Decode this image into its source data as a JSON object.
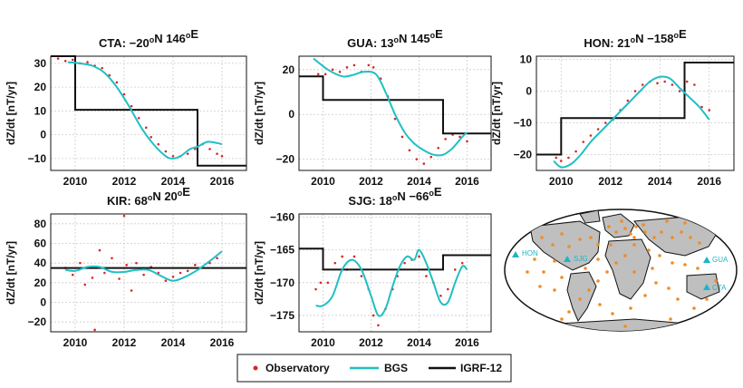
{
  "colors": {
    "observatory": "#d62728",
    "bgs": "#1fbfc4",
    "igrf": "#111111",
    "grid": "#cccccc",
    "land": "#bfbfbf",
    "station": "#f28b25"
  },
  "chart_data": [
    {
      "type": "line",
      "title_main": "CTA: −20",
      "title_sup1": "o",
      "title_mid": "N 146",
      "title_sup2": "o",
      "title_end": "E",
      "ylabel": "dZ/dt [nT/yr]",
      "xlim": [
        2009,
        2017
      ],
      "ylim": [
        -15,
        33
      ],
      "xticks": [
        2010,
        2012,
        2014,
        2016
      ],
      "yticks": [
        -10,
        0,
        10,
        20,
        30
      ],
      "bgs": [
        [
          2009.7,
          30.5
        ],
        [
          2010.2,
          30
        ],
        [
          2010.7,
          29
        ],
        [
          2011.2,
          26
        ],
        [
          2011.7,
          20
        ],
        [
          2012.2,
          12
        ],
        [
          2012.7,
          3
        ],
        [
          2013.2,
          -4
        ],
        [
          2013.7,
          -9
        ],
        [
          2014.0,
          -10
        ],
        [
          2014.3,
          -9
        ],
        [
          2014.7,
          -6
        ],
        [
          2015.0,
          -5
        ],
        [
          2015.4,
          -3
        ],
        [
          2015.8,
          -3.5
        ],
        [
          2016.0,
          -4
        ]
      ],
      "igrf": [
        [
          2009,
          33
        ],
        [
          2010,
          33
        ],
        [
          2010,
          10.5
        ],
        [
          2015,
          10.5
        ],
        [
          2015,
          -13
        ],
        [
          2017,
          -13
        ]
      ],
      "obs": [
        [
          2009.3,
          32
        ],
        [
          2009.6,
          31
        ],
        [
          2009.9,
          31.5
        ],
        [
          2010.2,
          30
        ],
        [
          2010.5,
          30.5
        ],
        [
          2010.8,
          29
        ],
        [
          2011.1,
          28
        ],
        [
          2011.4,
          25
        ],
        [
          2011.7,
          22
        ],
        [
          2012.0,
          17
        ],
        [
          2012.3,
          12
        ],
        [
          2012.6,
          7
        ],
        [
          2012.9,
          3
        ],
        [
          2013.1,
          -1
        ],
        [
          2013.4,
          -4
        ],
        [
          2013.7,
          -7
        ],
        [
          2014.0,
          -9
        ],
        [
          2014.3,
          -9
        ],
        [
          2014.6,
          -8
        ],
        [
          2014.9,
          -6
        ],
        [
          2015.2,
          -4
        ],
        [
          2015.5,
          -6
        ],
        [
          2015.8,
          -8
        ],
        [
          2016.0,
          -9
        ]
      ],
      "bands": null
    },
    {
      "type": "line",
      "title_main": "GUA: 13",
      "title_sup1": "o",
      "title_mid": "N 145",
      "title_sup2": "o",
      "title_end": "E",
      "ylabel": "dZ/dt [nT/yr]",
      "xlim": [
        2009,
        2017
      ],
      "ylim": [
        -25,
        26
      ],
      "xticks": [
        2010,
        2012,
        2014,
        2016
      ],
      "yticks": [
        -20,
        0,
        20
      ],
      "bgs": [
        [
          2009.6,
          25
        ],
        [
          2010.2,
          20
        ],
        [
          2010.8,
          17
        ],
        [
          2011.2,
          17.5
        ],
        [
          2011.7,
          19
        ],
        [
          2012.2,
          18
        ],
        [
          2012.6,
          10
        ],
        [
          2013.0,
          0
        ],
        [
          2013.4,
          -8
        ],
        [
          2013.8,
          -13
        ],
        [
          2014.2,
          -16
        ],
        [
          2014.6,
          -18
        ],
        [
          2015.0,
          -18
        ],
        [
          2015.4,
          -15
        ],
        [
          2015.8,
          -10
        ],
        [
          2016.0,
          -8
        ]
      ],
      "igrf": [
        [
          2009,
          17
        ],
        [
          2010,
          17
        ],
        [
          2010,
          6.5
        ],
        [
          2015,
          6.5
        ],
        [
          2015,
          -8.5
        ],
        [
          2017,
          -8.5
        ]
      ],
      "obs": [
        [
          2009.8,
          18
        ],
        [
          2010.1,
          18
        ],
        [
          2010.4,
          20
        ],
        [
          2010.7,
          19
        ],
        [
          2011.0,
          21
        ],
        [
          2011.3,
          22
        ],
        [
          2011.6,
          19
        ],
        [
          2011.9,
          22
        ],
        [
          2012.1,
          21
        ],
        [
          2012.4,
          16
        ],
        [
          2012.7,
          8
        ],
        [
          2013.0,
          -2
        ],
        [
          2013.3,
          -10
        ],
        [
          2013.6,
          -16
        ],
        [
          2013.9,
          -20
        ],
        [
          2014.2,
          -22
        ],
        [
          2014.5,
          -19
        ],
        [
          2014.8,
          -15
        ],
        [
          2015.1,
          -11
        ],
        [
          2015.4,
          -9
        ],
        [
          2015.7,
          -10
        ],
        [
          2016.0,
          -12
        ]
      ],
      "bands": null
    },
    {
      "type": "line",
      "title_main": "HON: 21",
      "title_sup1": "o",
      "title_mid": "N −158",
      "title_sup2": "o",
      "title_end": "E",
      "ylabel": "dZ/dt [nT/yr]",
      "xlim": [
        2009,
        2017
      ],
      "ylim": [
        -25,
        11
      ],
      "xticks": [
        2010,
        2012,
        2014,
        2016
      ],
      "yticks": [
        -20,
        -10,
        0,
        10
      ],
      "bgs": [
        [
          2009.7,
          -22
        ],
        [
          2010.0,
          -24
        ],
        [
          2010.4,
          -23
        ],
        [
          2010.8,
          -20
        ],
        [
          2011.2,
          -16
        ],
        [
          2011.7,
          -12
        ],
        [
          2012.2,
          -8
        ],
        [
          2012.7,
          -4
        ],
        [
          2013.2,
          0
        ],
        [
          2013.6,
          3
        ],
        [
          2014.0,
          4.5
        ],
        [
          2014.4,
          4
        ],
        [
          2014.8,
          1
        ],
        [
          2015.2,
          -2
        ],
        [
          2015.6,
          -5
        ],
        [
          2016.0,
          -9
        ]
      ],
      "igrf": [
        [
          2009,
          -20
        ],
        [
          2010,
          -20
        ],
        [
          2010,
          -8.5
        ],
        [
          2015,
          -8.5
        ],
        [
          2015,
          9
        ],
        [
          2017,
          9
        ]
      ],
      "obs": [
        [
          2009.8,
          -21
        ],
        [
          2010.0,
          -22
        ],
        [
          2010.3,
          -21
        ],
        [
          2010.6,
          -19
        ],
        [
          2010.9,
          -16
        ],
        [
          2011.2,
          -14
        ],
        [
          2011.5,
          -12
        ],
        [
          2011.8,
          -10
        ],
        [
          2012.1,
          -9
        ],
        [
          2012.4,
          -6
        ],
        [
          2012.7,
          -3
        ],
        [
          2013.0,
          0
        ],
        [
          2013.3,
          2
        ],
        [
          2013.6,
          3
        ],
        [
          2013.9,
          2.5
        ],
        [
          2014.2,
          3
        ],
        [
          2014.5,
          2
        ],
        [
          2014.8,
          0
        ],
        [
          2015.1,
          3
        ],
        [
          2015.4,
          2
        ],
        [
          2015.7,
          -5
        ],
        [
          2016.0,
          -6
        ]
      ],
      "bands": null
    },
    {
      "type": "line",
      "title_main": "KIR: 68",
      "title_sup1": "o",
      "title_mid": "N 20",
      "title_sup2": "o",
      "title_end": "E",
      "ylabel": "dZ/dt [nT/yr]",
      "xlim": [
        2009,
        2017
      ],
      "ylim": [
        -30,
        90
      ],
      "xticks": [
        2010,
        2012,
        2014,
        2016
      ],
      "yticks": [
        -20,
        0,
        20,
        40,
        60,
        80
      ],
      "bgs": [
        [
          2009.6,
          33
        ],
        [
          2010.0,
          32
        ],
        [
          2010.5,
          36
        ],
        [
          2011.0,
          36
        ],
        [
          2011.5,
          31
        ],
        [
          2012.0,
          31
        ],
        [
          2012.5,
          33
        ],
        [
          2013.0,
          33
        ],
        [
          2013.5,
          27
        ],
        [
          2014.0,
          22
        ],
        [
          2014.5,
          26
        ],
        [
          2015.0,
          33
        ],
        [
          2015.5,
          42
        ],
        [
          2016.0,
          52
        ]
      ],
      "igrf": [
        [
          2009,
          35
        ],
        [
          2017,
          35
        ]
      ],
      "obs": [
        [
          2009.6,
          35
        ],
        [
          2009.9,
          28
        ],
        [
          2010.2,
          40
        ],
        [
          2010.4,
          18
        ],
        [
          2010.7,
          25
        ],
        [
          2011.0,
          53
        ],
        [
          2011.2,
          30
        ],
        [
          2011.5,
          45
        ],
        [
          2011.8,
          24
        ],
        [
          2012.1,
          38
        ],
        [
          2012.3,
          12
        ],
        [
          2012.5,
          40
        ],
        [
          2012.8,
          28
        ],
        [
          2013.1,
          36
        ],
        [
          2013.4,
          30
        ],
        [
          2013.7,
          22
        ],
        [
          2014.0,
          26
        ],
        [
          2014.3,
          30
        ],
        [
          2014.6,
          32
        ],
        [
          2014.9,
          38
        ],
        [
          2015.2,
          36
        ],
        [
          2015.5,
          40
        ],
        [
          2015.8,
          45
        ],
        [
          2010.8,
          -28
        ],
        [
          2012.0,
          88
        ]
      ],
      "bands": null
    },
    {
      "type": "line",
      "title_main": "SJG: 18",
      "title_sup1": "o",
      "title_mid": "N −66",
      "title_sup2": "o",
      "title_end": "E",
      "ylabel": "dZ/dt [nT/yr]",
      "xlim": [
        2009,
        2017
      ],
      "ylim": [
        -177.5,
        -159.5
      ],
      "xticks": [
        2010,
        2012,
        2014,
        2016
      ],
      "yticks": [
        -175,
        -170,
        -165,
        -160
      ],
      "bgs": [
        [
          2009.7,
          -173.5
        ],
        [
          2010.0,
          -173.5
        ],
        [
          2010.4,
          -172
        ],
        [
          2010.8,
          -168
        ],
        [
          2011.2,
          -166.5
        ],
        [
          2011.6,
          -168
        ],
        [
          2012.0,
          -172
        ],
        [
          2012.3,
          -175
        ],
        [
          2012.6,
          -174
        ],
        [
          2012.9,
          -170.5
        ],
        [
          2013.2,
          -167.5
        ],
        [
          2013.5,
          -166
        ],
        [
          2013.8,
          -166.5
        ],
        [
          2014.0,
          -165
        ],
        [
          2014.3,
          -167
        ],
        [
          2014.6,
          -170
        ],
        [
          2014.9,
          -173
        ],
        [
          2015.2,
          -173
        ],
        [
          2015.5,
          -170
        ],
        [
          2015.8,
          -167.5
        ],
        [
          2016.0,
          -168
        ]
      ],
      "igrf": [
        [
          2009,
          -164.8
        ],
        [
          2010,
          -164.8
        ],
        [
          2010,
          -168
        ],
        [
          2015,
          -168
        ],
        [
          2015,
          -165.8
        ],
        [
          2017,
          -165.8
        ]
      ],
      "obs": [
        [
          2009.7,
          -171
        ],
        [
          2009.9,
          -170
        ],
        [
          2010.2,
          -170
        ],
        [
          2010.5,
          -167
        ],
        [
          2010.8,
          -166
        ],
        [
          2011.0,
          -168
        ],
        [
          2011.3,
          -166
        ],
        [
          2011.6,
          -169
        ],
        [
          2011.9,
          -171
        ],
        [
          2012.1,
          -175
        ],
        [
          2012.3,
          -176.5
        ],
        [
          2012.6,
          -174
        ],
        [
          2012.9,
          -171
        ],
        [
          2013.1,
          -169
        ],
        [
          2013.4,
          -167
        ],
        [
          2013.7,
          -166.5
        ],
        [
          2014.0,
          -166
        ],
        [
          2014.3,
          -169
        ],
        [
          2014.6,
          -170
        ],
        [
          2014.9,
          -172
        ],
        [
          2015.2,
          -171
        ],
        [
          2015.5,
          -168
        ],
        [
          2015.8,
          -167
        ]
      ],
      "bands": null
    }
  ],
  "map": {
    "sites": [
      "HON",
      "SJG",
      "GUA",
      "CTA"
    ]
  },
  "legend": {
    "observatory": "Observatory",
    "bgs": "BGS",
    "igrf": "IGRF-12"
  }
}
